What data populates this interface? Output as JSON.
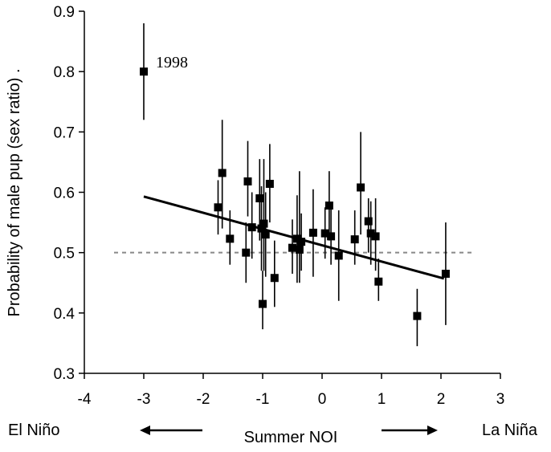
{
  "chart_data": {
    "type": "scatter",
    "title": "",
    "xlabel": "Summer NOI",
    "ylabel": "Probability of male pup (sex ratio) .",
    "xlim": [
      -4,
      3
    ],
    "ylim": [
      0.3,
      0.9
    ],
    "xticks": [
      "-4",
      "-3",
      "-2",
      "-1",
      "0",
      "1",
      "2",
      "3"
    ],
    "yticks": [
      "0.3",
      "0.4",
      "0.5",
      "0.6",
      "0.7",
      "0.8",
      "0.9"
    ],
    "grid": false,
    "points": [
      {
        "x": -3.0,
        "y": 0.8,
        "ylow": 0.72,
        "yhigh": 0.88
      },
      {
        "x": -1.75,
        "y": 0.575,
        "ylow": 0.53,
        "yhigh": 0.62
      },
      {
        "x": -1.68,
        "y": 0.632,
        "ylow": 0.54,
        "yhigh": 0.72
      },
      {
        "x": -1.55,
        "y": 0.523,
        "ylow": 0.48,
        "yhigh": 0.57
      },
      {
        "x": -1.28,
        "y": 0.5,
        "ylow": 0.45,
        "yhigh": 0.55
      },
      {
        "x": -1.25,
        "y": 0.618,
        "ylow": 0.56,
        "yhigh": 0.685
      },
      {
        "x": -1.18,
        "y": 0.542,
        "ylow": 0.49,
        "yhigh": 0.6
      },
      {
        "x": -1.05,
        "y": 0.59,
        "ylow": 0.52,
        "yhigh": 0.655
      },
      {
        "x": -1.02,
        "y": 0.54,
        "ylow": 0.47,
        "yhigh": 0.61
      },
      {
        "x": -1.0,
        "y": 0.415,
        "ylow": 0.373,
        "yhigh": 0.47
      },
      {
        "x": -0.98,
        "y": 0.548,
        "ylow": 0.47,
        "yhigh": 0.655
      },
      {
        "x": -0.95,
        "y": 0.53,
        "ylow": 0.46,
        "yhigh": 0.6
      },
      {
        "x": -0.88,
        "y": 0.614,
        "ylow": 0.55,
        "yhigh": 0.68
      },
      {
        "x": -0.8,
        "y": 0.458,
        "ylow": 0.41,
        "yhigh": 0.52
      },
      {
        "x": -0.5,
        "y": 0.508,
        "ylow": 0.465,
        "yhigh": 0.555
      },
      {
        "x": -0.42,
        "y": 0.523,
        "ylow": 0.45,
        "yhigh": 0.595
      },
      {
        "x": -0.38,
        "y": 0.505,
        "ylow": 0.45,
        "yhigh": 0.635
      },
      {
        "x": -0.35,
        "y": 0.518,
        "ylow": 0.47,
        "yhigh": 0.565
      },
      {
        "x": -0.15,
        "y": 0.533,
        "ylow": 0.46,
        "yhigh": 0.605
      },
      {
        "x": 0.05,
        "y": 0.532,
        "ylow": 0.49,
        "yhigh": 0.575
      },
      {
        "x": 0.12,
        "y": 0.578,
        "ylow": 0.52,
        "yhigh": 0.635
      },
      {
        "x": 0.15,
        "y": 0.527,
        "ylow": 0.48,
        "yhigh": 0.575
      },
      {
        "x": 0.28,
        "y": 0.495,
        "ylow": 0.42,
        "yhigh": 0.57
      },
      {
        "x": 0.55,
        "y": 0.522,
        "ylow": 0.48,
        "yhigh": 0.57
      },
      {
        "x": 0.65,
        "y": 0.608,
        "ylow": 0.53,
        "yhigh": 0.7
      },
      {
        "x": 0.78,
        "y": 0.552,
        "ylow": 0.5,
        "yhigh": 0.59
      },
      {
        "x": 0.82,
        "y": 0.532,
        "ylow": 0.48,
        "yhigh": 0.585
      },
      {
        "x": 0.9,
        "y": 0.527,
        "ylow": 0.47,
        "yhigh": 0.59
      },
      {
        "x": 0.95,
        "y": 0.452,
        "ylow": 0.42,
        "yhigh": 0.49
      },
      {
        "x": 1.6,
        "y": 0.395,
        "ylow": 0.345,
        "yhigh": 0.44
      },
      {
        "x": 2.08,
        "y": 0.465,
        "ylow": 0.38,
        "yhigh": 0.55
      }
    ],
    "trend_line": {
      "x": [
        -3.0,
        2.05
      ],
      "y": [
        0.593,
        0.457
      ]
    },
    "reference_line": {
      "y": 0.5,
      "x": [
        -3.5,
        2.55
      ],
      "style": "dashed",
      "color": "#888888"
    },
    "annotations": [
      {
        "text": "1998",
        "x": -3.0,
        "y": 0.8
      }
    ],
    "direction_labels": {
      "left": "El Niño",
      "right": "La Niña"
    }
  }
}
